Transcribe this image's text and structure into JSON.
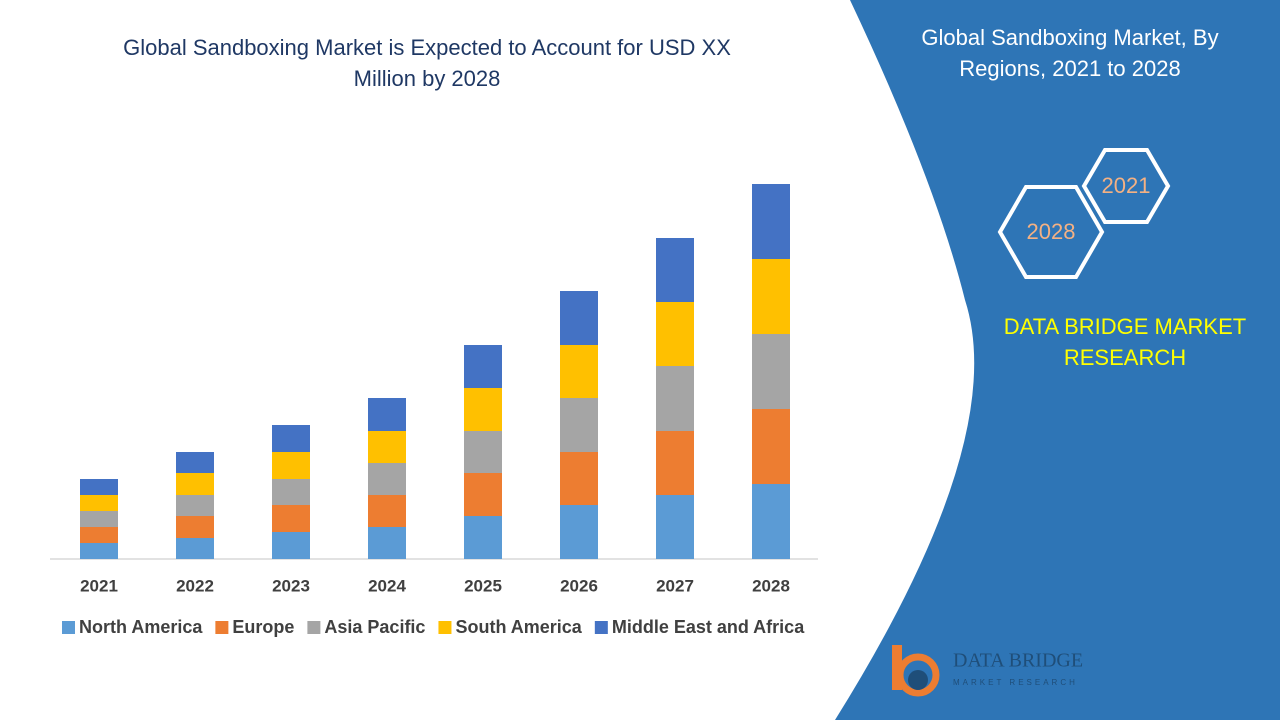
{
  "chart_data": {
    "type": "stacked_bar",
    "title": "Global Sandboxing Market is Expected to Account for USD XX Million by 2028",
    "categories": [
      "2021",
      "2022",
      "2023",
      "2024",
      "2025",
      "2026",
      "2027",
      "2028"
    ],
    "series": [
      {
        "name": "North America",
        "color": "#5b9bd5",
        "values": [
          16,
          21,
          27,
          32,
          43,
          54,
          64,
          75
        ]
      },
      {
        "name": "Europe",
        "color": "#ed7d31",
        "values": [
          16,
          22,
          27,
          32,
          43,
          53,
          64,
          75
        ]
      },
      {
        "name": "Asia Pacific",
        "color": "#a5a5a5",
        "values": [
          16,
          21,
          26,
          32,
          42,
          54,
          65,
          75
        ]
      },
      {
        "name": "South America",
        "color": "#ffc000",
        "values": [
          16,
          22,
          27,
          32,
          43,
          53,
          64,
          75
        ]
      },
      {
        "name": "Middle East and Africa",
        "color": "#4472c4",
        "values": [
          16,
          21,
          27,
          33,
          43,
          54,
          64,
          75
        ]
      }
    ],
    "ylim": [
      0,
      375
    ],
    "legend": "bottom"
  },
  "panel": {
    "title": "Global Sandboxing Market, By Regions, 2021 to 2028",
    "hexagons": [
      "2021",
      "2028"
    ],
    "brand": "DATA BRIDGE MARKET RESEARCH"
  },
  "logo": {
    "name": "DATA BRIDGE",
    "tagline": "MARKET RESEARCH"
  }
}
